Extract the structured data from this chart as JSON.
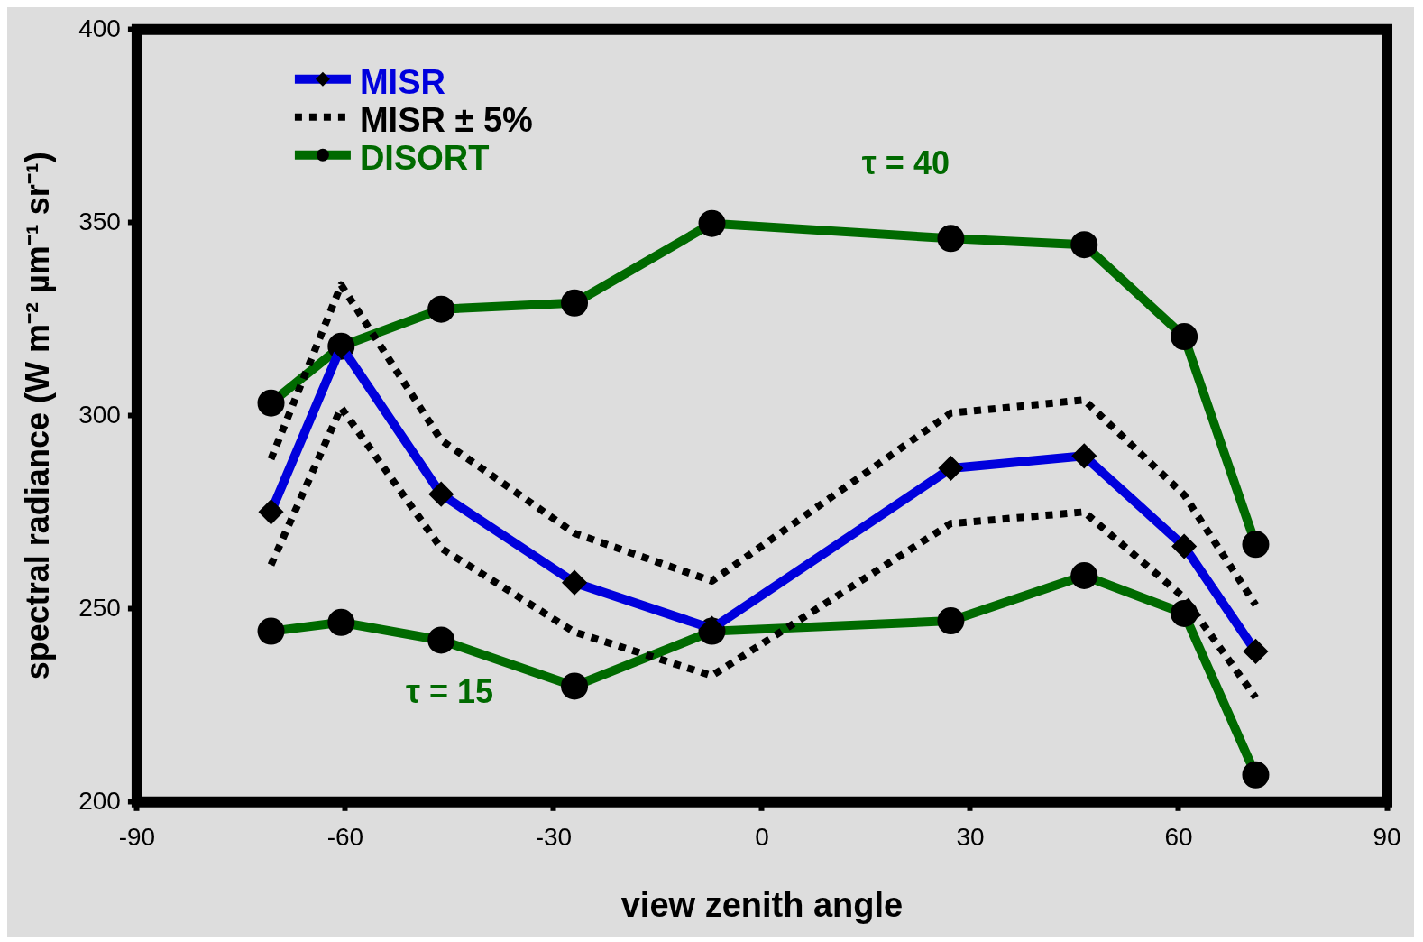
{
  "chart_data": {
    "type": "line",
    "xlabel": "view zenith angle",
    "ylabel": "spectral radiance (W m⁻² µm⁻¹ sr⁻¹)",
    "xlim": [
      -90,
      90
    ],
    "xticks": [
      -90,
      -60,
      -30,
      0,
      30,
      60,
      90
    ],
    "ylim": [
      200,
      400
    ],
    "yticks": [
      200,
      250,
      300,
      350,
      400
    ],
    "grid": false,
    "legend": "top left",
    "x": [
      -70.7,
      -60.6,
      -46.2,
      -27,
      -7.2,
      27.2,
      46.4,
      60.8,
      71.1
    ],
    "series": [
      {
        "name": "MISR ± 5%",
        "color": "#000000",
        "line_style": "dotted",
        "marker": "none",
        "values": [
          288.8,
          333.9,
          293.7,
          269.6,
          257.2,
          300.7,
          304.1,
          279.5,
          251
        ]
      },
      {
        "color": "#000000",
        "line_style": "dotted",
        "marker": "none",
        "values": [
          261.4,
          302.1,
          265.7,
          244,
          232.7,
          272.1,
          275.1,
          252.9,
          227
        ]
      },
      {
        "name": "MISR",
        "color": "#0000dd",
        "line_style": "solid",
        "marker": "diamond",
        "values": [
          275.1,
          318,
          279.7,
          256.8,
          244.9,
          286.4,
          289.6,
          266.2,
          239
        ]
      },
      {
        "name": "DISORT",
        "color": "#006a00",
        "line_style": "solid",
        "marker": "circle",
        "values": [
          303.3,
          318,
          327.6,
          329.2,
          349.8,
          345.9,
          344.3,
          320.5,
          266.7
        ]
      },
      {
        "color": "#006a00",
        "line_style": "solid",
        "marker": "circle",
        "values": [
          244.2,
          246.5,
          241.9,
          230,
          244.2,
          246.9,
          258.6,
          248.8,
          207
        ]
      }
    ],
    "annotations": [
      "τ = 40",
      "τ = 15"
    ]
  }
}
